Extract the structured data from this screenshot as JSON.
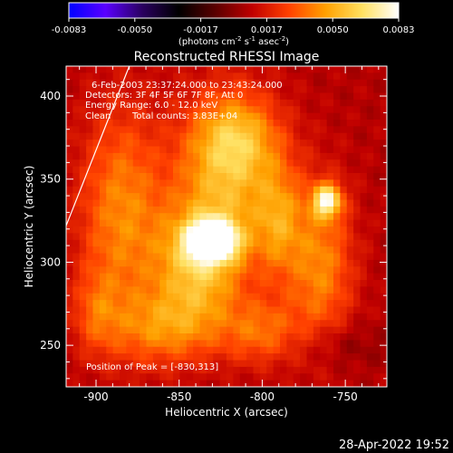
{
  "colorbar": {
    "ticks": [
      "-0.0083",
      "-0.0050",
      "-0.0017",
      "0.0017",
      "0.0050",
      "0.0083"
    ],
    "unit_parts": {
      "p1": "(photons cm",
      "s1": "-2",
      "p2": " s",
      "s2": "-1",
      "p3": " asec",
      "s3": "-2",
      "p4": ")"
    },
    "colors": [
      "#0000ff",
      "#5a00ff",
      "#2a0060",
      "#000000",
      "#5a0000",
      "#c00000",
      "#ff4000",
      "#ffa000",
      "#ffe060",
      "#ffffff"
    ]
  },
  "annotations": {
    "time_range": "6-Feb-2003 23:37:24.000 to 23:43:24.000",
    "detectors": "Detectors: 3F 4F 5F 6F 7F 8F, Att 0",
    "energy_range": "Energy Range: 6.0 - 12.0 keV",
    "clean_label": "Clean",
    "total_counts": "Total counts: 3.83E+04",
    "peak_position": "Position of Peak = [-830,313]"
  },
  "timestamp": "28-Apr-2022 19:52",
  "chart_data": {
    "type": "heatmap",
    "title": "Reconstructed RHESSI Image",
    "xlabel": "Heliocentric X (arcsec)",
    "ylabel": "Heliocentric Y (arcsec)",
    "xlim": [
      -918,
      -725
    ],
    "ylim": [
      225,
      418
    ],
    "x_ticks": [
      -900,
      -850,
      -800,
      -750
    ],
    "y_ticks": [
      250,
      300,
      350,
      400
    ],
    "x_tick_labels": [
      "-900",
      "-850",
      "-800",
      "-750"
    ],
    "y_tick_labels": [
      "250",
      "300",
      "350",
      "400"
    ],
    "colorbar_range": [
      -0.0083,
      0.0083
    ],
    "peak": [
      -830,
      313
    ],
    "limb_line": [
      [
        -918,
        322
      ],
      [
        -880,
        418
      ]
    ],
    "sources": [
      {
        "x": -830,
        "y": 313,
        "sx": 10,
        "sy": 8,
        "amp": 0.0083
      },
      {
        "x": -761,
        "y": 337,
        "sx": 6,
        "sy": 7,
        "amp": 0.006
      },
      {
        "x": -840,
        "y": 298,
        "sx": 18,
        "sy": 24,
        "amp": 0.004
      },
      {
        "x": -822,
        "y": 345,
        "sx": 22,
        "sy": 38,
        "amp": 0.0038
      },
      {
        "x": -815,
        "y": 375,
        "sx": 18,
        "sy": 18,
        "amp": 0.003
      },
      {
        "x": -885,
        "y": 330,
        "sx": 18,
        "sy": 45,
        "amp": 0.0034
      },
      {
        "x": -765,
        "y": 298,
        "sx": 14,
        "sy": 34,
        "amp": 0.0034
      },
      {
        "x": -858,
        "y": 260,
        "sx": 24,
        "sy": 16,
        "amp": 0.003
      },
      {
        "x": -800,
        "y": 258,
        "sx": 16,
        "sy": 14,
        "amp": 0.0026
      },
      {
        "x": -790,
        "y": 325,
        "sx": 10,
        "sy": 24,
        "amp": 0.0028
      },
      {
        "x": -900,
        "y": 270,
        "sx": 10,
        "sy": 18,
        "amp": 0.0018
      },
      {
        "x": -755,
        "y": 250,
        "sx": 18,
        "sy": 10,
        "amp": -0.001
      }
    ]
  }
}
